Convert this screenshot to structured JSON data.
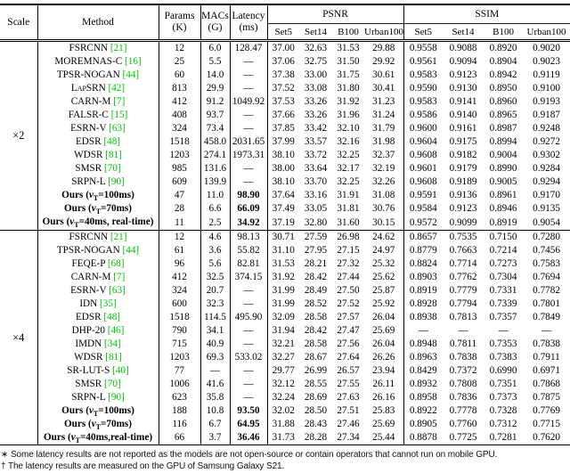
{
  "colors": {
    "cite_green": "#00c300"
  },
  "table": {
    "headers": {
      "scale": "Scale",
      "method": "Method",
      "params": "Params\n(K)",
      "macs": "MACs\n(G)",
      "latency": "Latency\n(ms)",
      "psnr": "PSNR",
      "ssim": "SSIM",
      "bench": [
        "Set5",
        "Set14",
        "B100",
        "Urban100"
      ]
    },
    "sections": [
      {
        "scale": "×2",
        "rows": [
          {
            "method": "FSRCNN",
            "cite": "[21]",
            "params": "12",
            "macs": "6.0",
            "latency": "128.47",
            "psnr": [
              "37.00",
              "32.63",
              "31.53",
              "29.88"
            ],
            "ssim": [
              "0.9558",
              "0.9088",
              "0.8920",
              "0.9020"
            ]
          },
          {
            "method": "MOREMNAS-C",
            "cite": "[16]",
            "params": "25",
            "macs": "5.5",
            "latency": "—",
            "psnr": [
              "37.06",
              "32.75",
              "31.50",
              "29.92"
            ],
            "ssim": [
              "0.9561",
              "0.9094",
              "0.8904",
              "0.9023"
            ]
          },
          {
            "method": "TPSR-NOGAN",
            "cite": "[44]",
            "params": "60",
            "macs": "14.0",
            "latency": "—",
            "psnr": [
              "37.38",
              "33.00",
              "31.75",
              "30.61"
            ],
            "ssim": [
              "0.9583",
              "0.9123",
              "0.8942",
              "0.9119"
            ]
          },
          {
            "method": "LapSRN",
            "cite": "[42]",
            "sc": true,
            "params": "813",
            "macs": "29.9",
            "latency": "—",
            "psnr": [
              "37.52",
              "33.08",
              "31.80",
              "30.41"
            ],
            "ssim": [
              "0.9590",
              "0.9130",
              "0.8950",
              "0.9100"
            ]
          },
          {
            "method": "CARN-M",
            "cite": "[7]",
            "params": "412",
            "macs": "91.2",
            "latency": "1049.92",
            "psnr": [
              "37.53",
              "33.26",
              "31.92",
              "31.23"
            ],
            "ssim": [
              "0.9583",
              "0.9141",
              "0.8960",
              "0.9193"
            ]
          },
          {
            "method": "FALSR-C",
            "cite": "[15]",
            "params": "408",
            "macs": "93.7",
            "latency": "—",
            "psnr": [
              "37.66",
              "33.26",
              "31.96",
              "31.24"
            ],
            "ssim": [
              "0.9586",
              "0.9140",
              "0.8965",
              "0.9187"
            ]
          },
          {
            "method": "ESRN-V",
            "cite": "[63]",
            "params": "324",
            "macs": "73.4",
            "latency": "—",
            "psnr": [
              "37.85",
              "33.42",
              "32.10",
              "31.79"
            ],
            "ssim": [
              "0.9600",
              "0.9161",
              "0.8987",
              "0.9248"
            ]
          },
          {
            "method": "EDSR",
            "cite": "[48]",
            "params": "1518",
            "macs": "458.0",
            "latency": "2031.65",
            "psnr": [
              "37.99",
              "33.57",
              "32.16",
              "31.98"
            ],
            "ssim": [
              "0.9604",
              "0.9175",
              "0.8994",
              "0.9272"
            ]
          },
          {
            "method": "WDSR",
            "cite": "[81]",
            "params": "1203",
            "macs": "274.1",
            "latency": "1973.31",
            "psnr": [
              "38.10",
              "33.72",
              "32.25",
              "32.37"
            ],
            "ssim": [
              "0.9608",
              "0.9182",
              "0.9004",
              "0.9302"
            ]
          },
          {
            "method": "SMSR",
            "cite": "[70]",
            "params": "985",
            "macs": "131.6",
            "latency": "—",
            "psnr": [
              "38.00",
              "33.64",
              "32.17",
              "32.19"
            ],
            "ssim": [
              "0.9601",
              "0.9179",
              "0.8990",
              "0.9284"
            ]
          },
          {
            "method": "SRPN-L",
            "cite": "[90]",
            "params": "609",
            "macs": "139.9",
            "latency": "—",
            "psnr": [
              "38.10",
              "33.70",
              "32.25",
              "32.26"
            ],
            "ssim": [
              "0.9608",
              "0.9189",
              "0.9005",
              "0.9294"
            ]
          },
          {
            "method": "Ours (vT=100ms)",
            "parts": {
              "pre": "Ours (",
              "var": "v",
              "sub": "T",
              "post": "=100ms)"
            },
            "bold": true,
            "params": "47",
            "macs": "11.0",
            "latency": "98.90",
            "psnr": [
              "37.64",
              "33.16",
              "31.91",
              "31.08"
            ],
            "ssim": [
              "0.9591",
              "0.9136",
              "0.8961",
              "0.9170"
            ]
          },
          {
            "method": "Ours (vT=70ms)",
            "parts": {
              "pre": "Ours (",
              "var": "v",
              "sub": "T",
              "post": "=70ms)"
            },
            "bold": true,
            "params": "28",
            "macs": "6.6",
            "latency": "66.09",
            "psnr": [
              "37.49",
              "33.05",
              "31.81",
              "30.76"
            ],
            "ssim": [
              "0.9584",
              "0.9123",
              "0.8946",
              "0.9135"
            ]
          },
          {
            "method": "Ours (vT=40ms, real-time)",
            "parts": {
              "pre": "Ours (",
              "var": "v",
              "sub": "T",
              "post": "=40ms, real-time)"
            },
            "bold": true,
            "params": "11",
            "macs": "2.5",
            "latency": "34.92",
            "psnr": [
              "37.19",
              "32.80",
              "31.60",
              "30.15"
            ],
            "ssim": [
              "0.9572",
              "0.9099",
              "0.8919",
              "0.9054"
            ]
          }
        ]
      },
      {
        "scale": "×4",
        "rows": [
          {
            "method": "FSRCNN",
            "cite": "[21]",
            "params": "12",
            "macs": "4.6",
            "latency": "98.13",
            "psnr": [
              "30.71",
              "27.59",
              "26.98",
              "24.62"
            ],
            "ssim": [
              "0.8657",
              "0.7535",
              "0.7150",
              "0.7280"
            ]
          },
          {
            "method": "TPSR-NOGAN",
            "cite": "[44]",
            "params": "61",
            "macs": "3.6",
            "latency": "55.82",
            "psnr": [
              "31.10",
              "27.95",
              "27.15",
              "24.97"
            ],
            "ssim": [
              "0.8779",
              "0.7663",
              "0.7214",
              "0.7456"
            ]
          },
          {
            "method": "FEQE-P",
            "cite": "[68]",
            "params": "96",
            "macs": "5.6",
            "latency": "82.81",
            "psnr": [
              "31.53",
              "28.21",
              "27.32",
              "25.32"
            ],
            "ssim": [
              "0.8824",
              "0.7714",
              "0.7273",
              "0.7583"
            ]
          },
          {
            "method": "CARN-M",
            "cite": "[7]",
            "params": "412",
            "macs": "32.5",
            "latency": "374.15",
            "psnr": [
              "31.92",
              "28.42",
              "27.44",
              "25.62"
            ],
            "ssim": [
              "0.8903",
              "0.7762",
              "0.7304",
              "0.7694"
            ]
          },
          {
            "method": "ESRN-V",
            "cite": "[63]",
            "params": "324",
            "macs": "20.7",
            "latency": "—",
            "psnr": [
              "31.99",
              "28.49",
              "27.50",
              "25.87"
            ],
            "ssim": [
              "0.8919",
              "0.7779",
              "0.7331",
              "0.7782"
            ]
          },
          {
            "method": "IDN",
            "cite": "[35]",
            "params": "600",
            "macs": "32.3",
            "latency": "—",
            "psnr": [
              "31.99",
              "28.52",
              "27.52",
              "25.92"
            ],
            "ssim": [
              "0.8928",
              "0.7794",
              "0.7339",
              "0.7801"
            ]
          },
          {
            "method": "EDSR",
            "cite": "[48]",
            "params": "1518",
            "macs": "114.5",
            "latency": "495.90",
            "psnr": [
              "32.09",
              "28.58",
              "27.57",
              "26.04"
            ],
            "ssim": [
              "0.8938",
              "0.7813",
              "0.7357",
              "0.7849"
            ]
          },
          {
            "method": "DHP-20",
            "cite": "[46]",
            "params": "790",
            "macs": "34.1",
            "latency": "—",
            "psnr": [
              "31.94",
              "28.42",
              "27.47",
              "25.69"
            ],
            "ssim": [
              "—",
              "—",
              "—",
              "—"
            ]
          },
          {
            "method": "IMDN",
            "cite": "[34]",
            "params": "715",
            "macs": "40.9",
            "latency": "—",
            "psnr": [
              "32.21",
              "28.58",
              "27.56",
              "26.04"
            ],
            "ssim": [
              "0.8948",
              "0.7811",
              "0.7353",
              "0.7838"
            ]
          },
          {
            "method": "WDSR",
            "cite": "[81]",
            "params": "1203",
            "macs": "69.3",
            "latency": "533.02",
            "psnr": [
              "32.27",
              "28.67",
              "27.64",
              "26.26"
            ],
            "ssim": [
              "0.8963",
              "0.7838",
              "0.7383",
              "0.7911"
            ]
          },
          {
            "method": "SR-LUT-S",
            "cite": "[40]",
            "params": "77",
            "macs": "—",
            "latency": "—",
            "psnr": [
              "29.77",
              "26.99",
              "26.57",
              "23.94"
            ],
            "ssim": [
              "0.8429",
              "0.7372",
              "0.6990",
              "0.6971"
            ]
          },
          {
            "method": "SMSR",
            "cite": "[70]",
            "params": "1006",
            "macs": "41.6",
            "latency": "—",
            "psnr": [
              "32.12",
              "28.55",
              "27.55",
              "26.11"
            ],
            "ssim": [
              "0.8932",
              "0.7808",
              "0.7351",
              "0.7868"
            ]
          },
          {
            "method": "SRPN-L",
            "cite": "[90]",
            "params": "623",
            "macs": "35.8",
            "latency": "—",
            "psnr": [
              "32.24",
              "28.69",
              "27.63",
              "26.16"
            ],
            "ssim": [
              "0.8958",
              "0.7836",
              "0.7373",
              "0.7875"
            ]
          },
          {
            "method": "Ours (vT=100ms)",
            "parts": {
              "pre": "Ours (",
              "var": "v",
              "sub": "T",
              "post": "=100ms)"
            },
            "bold": true,
            "params": "188",
            "macs": "10.8",
            "latency": "93.50",
            "psnr": [
              "32.02",
              "28.50",
              "27.51",
              "25.83"
            ],
            "ssim": [
              "0.8922",
              "0.7778",
              "0.7328",
              "0.7769"
            ]
          },
          {
            "method": "Ours (vT=70ms)",
            "parts": {
              "pre": "Ours (",
              "var": "v",
              "sub": "T",
              "post": "=70ms)"
            },
            "bold": true,
            "params": "116",
            "macs": "6.7",
            "latency": "64.95",
            "psnr": [
              "31.88",
              "28.43",
              "27.46",
              "25.69"
            ],
            "ssim": [
              "0.8905",
              "0.7760",
              "0.7312",
              "0.7715"
            ]
          },
          {
            "method": "Ours (vT=40ms,real-time)",
            "parts": {
              "pre": "Ours (",
              "var": "v",
              "sub": "T",
              "post": "=40ms,real-time)"
            },
            "bold": true,
            "params": "66",
            "macs": "3.7",
            "latency": "36.46",
            "psnr": [
              "31.73",
              "28.28",
              "27.34",
              "25.44"
            ],
            "ssim": [
              "0.8878",
              "0.7725",
              "0.7281",
              "0.7620"
            ]
          }
        ]
      }
    ]
  },
  "footnotes": [
    "∗ Some latency results are not reported as the models are not open-source or contain operators that cannot run on mobile GPU.",
    "† The latency results are measured on the GPU of Samsung Galaxy S21."
  ]
}
